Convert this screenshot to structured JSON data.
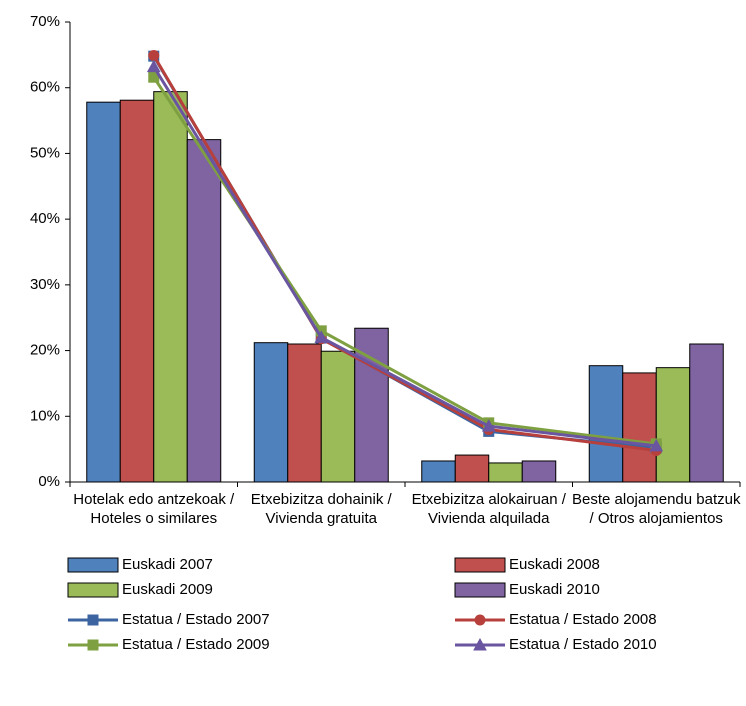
{
  "chart_data": {
    "type": "bar",
    "categories": [
      "Hotelak edo antzekoak / Hoteles o similares",
      "Etxebizitza dohainik / Vivienda gratuita",
      "Etxebizitza alokairuan / Vivienda alquilada",
      "Beste alojamendu batzuk / Otros alojamientos"
    ],
    "series": [
      {
        "name": "Euskadi 2007",
        "type": "bar",
        "color": "#4f81bd",
        "values": [
          57.8,
          21.2,
          3.2,
          17.7
        ]
      },
      {
        "name": "Euskadi 2008",
        "type": "bar",
        "color": "#c0504d",
        "values": [
          58.1,
          21.0,
          4.1,
          16.6
        ]
      },
      {
        "name": "Euskadi 2009",
        "type": "bar",
        "color": "#9bbb59",
        "values": [
          59.4,
          19.9,
          2.9,
          17.4
        ]
      },
      {
        "name": "Euskadi 2010",
        "type": "bar",
        "color": "#8064a2",
        "values": [
          52.1,
          23.4,
          3.2,
          21.0
        ]
      },
      {
        "name": "Estatua / Estado 2007",
        "type": "line",
        "marker": "square",
        "color": "#3c64a0",
        "values": [
          64.8,
          21.9,
          7.7,
          5.2
        ]
      },
      {
        "name": "Estatua / Estado 2008",
        "type": "line",
        "marker": "circle",
        "color": "#b8403c",
        "values": [
          64.9,
          21.8,
          8.0,
          4.8
        ]
      },
      {
        "name": "Estatua / Estado 2009",
        "type": "line",
        "marker": "square",
        "color": "#7ea040",
        "values": [
          61.6,
          23.0,
          9.0,
          5.8
        ]
      },
      {
        "name": "Estatua / Estado 2010",
        "type": "line",
        "marker": "triangle",
        "color": "#6a55a0",
        "values": [
          63.2,
          22.0,
          8.5,
          5.5
        ]
      }
    ],
    "ylim": [
      0,
      70
    ],
    "yticks": [
      {
        "value": 0,
        "label": "0%"
      },
      {
        "value": 10,
        "label": "10%"
      },
      {
        "value": 20,
        "label": "20%"
      },
      {
        "value": 30,
        "label": "30%"
      },
      {
        "value": 40,
        "label": "40%"
      },
      {
        "value": 50,
        "label": "50%"
      },
      {
        "value": 60,
        "label": "60%"
      },
      {
        "value": 70,
        "label": "70%"
      }
    ],
    "grid": false
  }
}
